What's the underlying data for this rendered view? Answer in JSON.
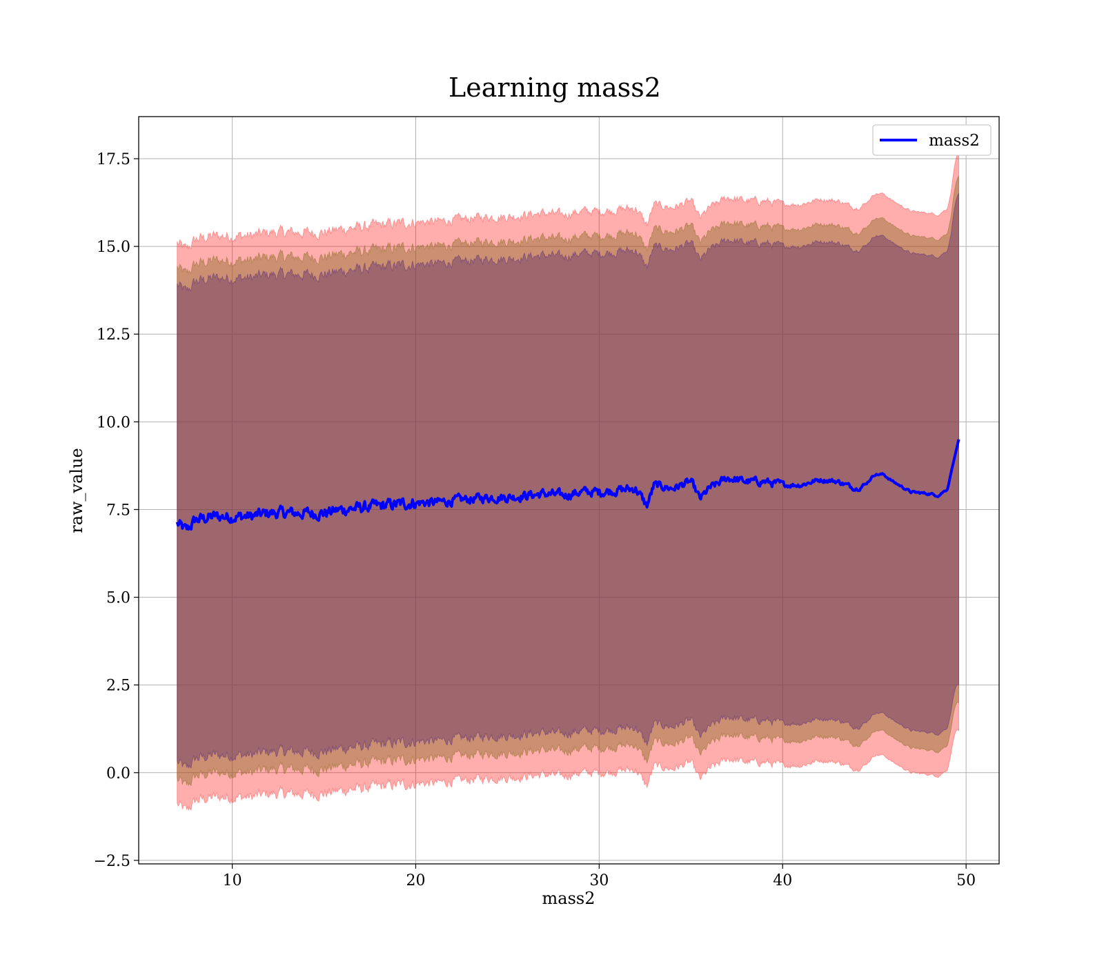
{
  "chart_data": {
    "type": "line",
    "title": "Learning mass2",
    "xlabel": "mass2",
    "ylabel": "raw_value",
    "xlim": [
      4.9,
      51.8
    ],
    "ylim": [
      -2.6,
      18.7
    ],
    "xticks": [
      10,
      20,
      30,
      40,
      50
    ],
    "xtick_labels": [
      "10",
      "20",
      "30",
      "40",
      "50"
    ],
    "yticks": [
      -2.5,
      0.0,
      2.5,
      5.0,
      7.5,
      10.0,
      12.5,
      15.0,
      17.5
    ],
    "ytick_labels": [
      "−2.5",
      "0.0",
      "2.5",
      "5.0",
      "7.5",
      "10.0",
      "12.5",
      "15.0",
      "17.5"
    ],
    "grid": true,
    "legend": {
      "position": "upper right",
      "entries": [
        "mass2"
      ]
    },
    "colors": {
      "line": "#0000ff",
      "band_outer": "#ff0000",
      "band_middle": "#8b5a2b",
      "band_inner": "#5a3a5a"
    },
    "series": [
      {
        "name": "mass2",
        "x": [
          7.0,
          7.5,
          8.0,
          9.0,
          10.0,
          11.0,
          12.0,
          13.0,
          14.0,
          15.0,
          16.0,
          17.0,
          18.0,
          19.0,
          20.0,
          21.0,
          22.0,
          23.0,
          24.0,
          25.0,
          26.0,
          27.0,
          28.0,
          29.0,
          30.0,
          31.0,
          32.0,
          32.6,
          33.0,
          34.0,
          35.0,
          35.5,
          36.0,
          37.0,
          38.0,
          39.0,
          40.0,
          41.0,
          42.0,
          43.0,
          44.0,
          44.5,
          45.0,
          45.5,
          46.0,
          47.0,
          48.0,
          48.5,
          49.0,
          49.2,
          49.6
        ],
        "y": [
          7.1,
          6.9,
          7.2,
          7.3,
          7.3,
          7.3,
          7.4,
          7.4,
          7.4,
          7.4,
          7.5,
          7.55,
          7.6,
          7.65,
          7.7,
          7.7,
          7.75,
          7.8,
          7.85,
          7.85,
          7.9,
          7.95,
          7.9,
          8.0,
          8.0,
          8.05,
          8.1,
          7.6,
          8.2,
          8.1,
          8.3,
          7.8,
          8.1,
          8.4,
          8.3,
          8.3,
          8.2,
          8.2,
          8.35,
          8.3,
          8.1,
          8.2,
          8.5,
          8.5,
          8.3,
          8.0,
          7.95,
          7.9,
          8.1,
          8.6,
          9.5
        ]
      }
    ],
    "bands": [
      {
        "name": "outer",
        "offset_upper": 8.0,
        "offset_lower": 8.0,
        "end_upper": 17.7,
        "end_lower": 1.2
      },
      {
        "name": "middle",
        "offset_upper": 7.3,
        "offset_lower": 7.3,
        "end_upper": 17.0,
        "end_lower": 2.0
      },
      {
        "name": "inner",
        "offset_upper": 6.8,
        "offset_lower": 6.8,
        "end_upper": 16.5,
        "end_lower": 2.5
      }
    ]
  }
}
